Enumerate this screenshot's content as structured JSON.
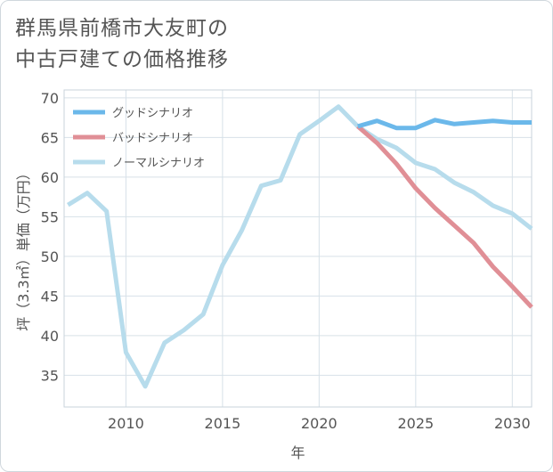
{
  "title_lines": [
    "群馬県前橋市大友町の",
    "中古戸建ての価格推移"
  ],
  "chart_data": {
    "type": "line",
    "xlabel": "年",
    "ylabel": "坪（3.3㎡）単価（万円）",
    "xlim": [
      2006.8,
      2031
    ],
    "ylim": [
      31,
      71
    ],
    "xticks": [
      2010,
      2015,
      2020,
      2025,
      2030
    ],
    "yticks": [
      35,
      40,
      45,
      50,
      55,
      60,
      65,
      70
    ],
    "grid": true,
    "legend_position": "top-left",
    "series": [
      {
        "name": "グッドシナリオ",
        "color": "#6bb8ea",
        "x": [
          2022,
          2023,
          2024,
          2025,
          2026,
          2027,
          2028,
          2029,
          2030,
          2031
        ],
        "values": [
          66.4,
          67.1,
          66.2,
          66.2,
          67.2,
          66.7,
          66.9,
          67.1,
          66.9,
          66.9
        ]
      },
      {
        "name": "バッドシナリオ",
        "color": "#e08f96",
        "x": [
          2022,
          2023,
          2024,
          2025,
          2026,
          2027,
          2028,
          2029,
          2030,
          2031
        ],
        "values": [
          66.4,
          64.3,
          61.7,
          58.6,
          56.1,
          53.9,
          51.7,
          48.7,
          46.2,
          43.6
        ]
      },
      {
        "name": "ノーマルシナリオ",
        "color": "#b7dcec",
        "x": [
          2007,
          2008,
          2009,
          2010,
          2011,
          2012,
          2013,
          2014,
          2015,
          2016,
          2017,
          2018,
          2019,
          2020,
          2021,
          2022,
          2023,
          2024,
          2025,
          2026,
          2027,
          2028,
          2029,
          2030,
          2031
        ],
        "values": [
          56.5,
          58.0,
          55.7,
          37.9,
          33.6,
          39.1,
          40.7,
          42.7,
          48.9,
          53.3,
          58.9,
          59.6,
          65.4,
          67.1,
          68.9,
          66.4,
          64.8,
          63.7,
          61.8,
          61.0,
          59.3,
          58.1,
          56.4,
          55.4,
          53.5
        ]
      }
    ]
  }
}
